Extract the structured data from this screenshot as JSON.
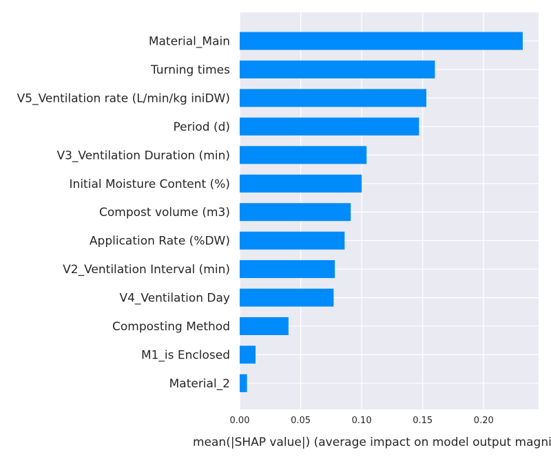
{
  "colors": {
    "bar": "#008bfb",
    "plot_background": "#eaeaf2",
    "grid": "#ffffff",
    "text": "#262626"
  },
  "chart_data": {
    "type": "bar",
    "orientation": "horizontal",
    "categories": [
      "Material_Main",
      "Turning times",
      "V5_Ventilation rate (L/min/kg iniDW)",
      "Period (d)",
      "V3_Ventilation Duration (min)",
      "Initial Moisture Content (%)",
      "Compost volume (m3)",
      "Application Rate (%DW)",
      "V2_Ventilation Interval (min)",
      "V4_Ventilation Day",
      "Composting Method",
      "M1_is Enclosed",
      "Material_2"
    ],
    "values": [
      0.232,
      0.16,
      0.153,
      0.147,
      0.104,
      0.1,
      0.091,
      0.086,
      0.078,
      0.077,
      0.04,
      0.013,
      0.006
    ],
    "xlabel": "mean(|SHAP value|) (average impact on model output magnitude)",
    "xlim": [
      0,
      0.245
    ],
    "xticks": [
      0.0,
      0.05,
      0.1,
      0.15,
      0.2
    ],
    "xtick_labels": [
      "0.00",
      "0.05",
      "0.10",
      "0.15",
      "0.20"
    ],
    "grid": true
  }
}
